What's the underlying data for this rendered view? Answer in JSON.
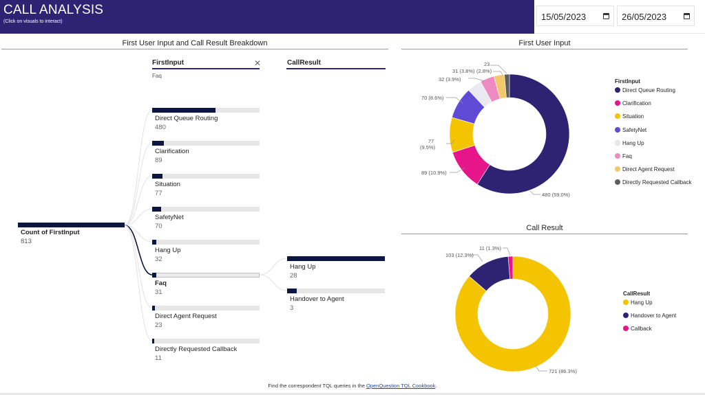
{
  "header": {
    "title": "CALL ANALYSIS",
    "subtitle": "(Click on visuals to interact)",
    "start_date": "15/05/2023",
    "end_date": "26/05/2023"
  },
  "tree": {
    "title": "First User Input and Call Result Breakdown",
    "col1_header": "FirstInput",
    "col1_filter": "Faq",
    "col2_header": "CallResult",
    "root_label": "Count of FirstInput",
    "root_value": "813",
    "first_input_nodes": [
      {
        "label": "Direct Queue Routing",
        "value": "480",
        "count": 480
      },
      {
        "label": "Clarification",
        "value": "89",
        "count": 89
      },
      {
        "label": "Situation",
        "value": "77",
        "count": 77
      },
      {
        "label": "SafetyNet",
        "value": "70",
        "count": 70
      },
      {
        "label": "Hang Up",
        "value": "32",
        "count": 32
      },
      {
        "label": "Faq",
        "value": "31",
        "count": 31
      },
      {
        "label": "Direct Agent Request",
        "value": "23",
        "count": 23
      },
      {
        "label": "Directly Requested Callback",
        "value": "11",
        "count": 11
      }
    ],
    "call_result_nodes": [
      {
        "label": "Hang Up",
        "value": "28",
        "count": 28
      },
      {
        "label": "Handover to Agent",
        "value": "3",
        "count": 3
      }
    ]
  },
  "first_input_chart": {
    "title": "First User Input",
    "legend_title": "FirstInput",
    "labels": [
      "480 (59.0%)",
      "89 (10.9%)",
      "77",
      "(9.5%)",
      "70 (8.6%)",
      "32 (3.9%)",
      "31 (3.8%)",
      "(2.8%)",
      "23"
    ]
  },
  "call_result_chart": {
    "title": "Call Result",
    "legend_title": "CallResult",
    "labels": [
      "721 (86.3%)",
      "103 (12.3%)",
      "11 (1.3%)"
    ]
  },
  "chart_data": [
    {
      "type": "pie",
      "title": "First User Input",
      "categories": [
        "Direct Queue Routing",
        "Clarification",
        "Situation",
        "SafetyNet",
        "Hang Up",
        "Faq",
        "Direct Agent Request",
        "Directly Requested Callback"
      ],
      "values": [
        480,
        89,
        77,
        70,
        32,
        31,
        23,
        11
      ],
      "colors": [
        "#2d2372",
        "#e6158a",
        "#f5c400",
        "#5f4ad6",
        "#e9e9ef",
        "#ee8ac2",
        "#f1c96a",
        "#5e5e5e"
      ],
      "legend": "right"
    },
    {
      "type": "pie",
      "title": "Call Result",
      "categories": [
        "Hang Up",
        "Handover to Agent",
        "Callback"
      ],
      "values": [
        721,
        103,
        11
      ],
      "colors": [
        "#f5c400",
        "#2d2372",
        "#e6158a"
      ],
      "legend": "right"
    }
  ],
  "footer": {
    "text_before": "Find the correspondent  TQL queries in the ",
    "link": "OpenQuestion TQL Cookbook",
    "text_after": "."
  }
}
